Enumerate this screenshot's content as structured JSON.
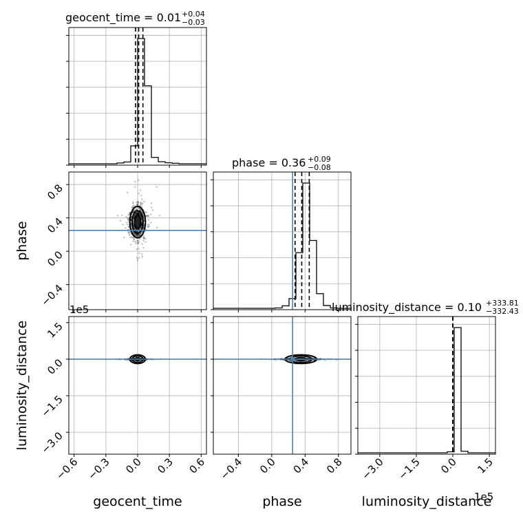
{
  "chart_data": {
    "type": "corner",
    "parameters": [
      "geocent_time",
      "phase",
      "luminosity_distance"
    ],
    "titles": [
      {
        "param": "geocent_time",
        "text": "geocent_time = 0.01",
        "plus": "+0.04",
        "minus": "−0.03"
      },
      {
        "param": "phase",
        "text": "phase = 0.36",
        "plus": "+0.09",
        "minus": "−0.08"
      },
      {
        "param": "luminosity_distance",
        "text": "luminosity_distance = 0.10",
        "plus": "+333.81",
        "minus": "−332.43"
      }
    ],
    "axis_ranges": {
      "geocent_time": [
        -0.65,
        0.65
      ],
      "phase": [
        -0.7,
        0.95
      ],
      "luminosity_distance": [
        -390000,
        175000
      ]
    },
    "ticks": {
      "geocent_time": [
        -0.6,
        -0.3,
        0.0,
        0.3,
        0.6
      ],
      "phase": [
        -0.4,
        0.0,
        0.4,
        0.8
      ],
      "luminosity_distance": [
        -300000,
        -150000,
        0,
        150000
      ]
    },
    "tick_labels": {
      "geocent_time": [
        "−0.6",
        "−0.3",
        "0.0",
        "0.3",
        "0.6"
      ],
      "phase": [
        "−0.4",
        "0.0",
        "0.4",
        "0.8"
      ],
      "luminosity_distance": [
        "−3.0",
        "−1.5",
        "0.0",
        "1.5"
      ]
    },
    "offset_label": "1e5",
    "truths": {
      "phase": 0.25,
      "luminosity_distance": 0
    },
    "quantiles": {
      "geocent_time": [
        -0.02,
        0.01,
        0.05
      ],
      "phase": [
        0.28,
        0.36,
        0.45
      ],
      "luminosity_distance": [
        -333,
        0.1,
        334
      ]
    },
    "histograms": {
      "geocent_time": {
        "edges": [
          -0.65,
          -0.585,
          -0.52,
          -0.455,
          -0.39,
          -0.325,
          -0.26,
          -0.195,
          -0.13,
          -0.065,
          0.0,
          0.065,
          0.13,
          0.195,
          0.26,
          0.325,
          0.39,
          0.455,
          0.52,
          0.585,
          0.65
        ],
        "counts": [
          0,
          0,
          0,
          0,
          0,
          0,
          0,
          3,
          7,
          70,
          490,
          305,
          25,
          8,
          4,
          2,
          0,
          0,
          0,
          0
        ]
      },
      "phase": {
        "edges": [
          -0.7,
          -0.6175,
          -0.535,
          -0.4525,
          -0.37,
          -0.2875,
          -0.205,
          -0.1225,
          -0.04,
          0.0425,
          0.125,
          0.2075,
          0.29,
          0.3725,
          0.455,
          0.5375,
          0.62,
          0.7025,
          0.785,
          0.8675,
          0.95
        ],
        "counts": [
          0,
          0,
          0,
          0,
          0,
          0,
          0,
          0,
          0,
          1,
          7,
          28,
          160,
          360,
          195,
          42,
          8,
          1,
          0,
          0
        ]
      },
      "luminosity_distance": {
        "edges": [
          -390000,
          -361750,
          -333500,
          -305250,
          -277000,
          -248750,
          -220500,
          -192250,
          -164000,
          -135750,
          -107500,
          -79250,
          -51000,
          -22750,
          5500,
          33750,
          62000,
          90250,
          118500,
          146750,
          175000
        ],
        "counts": [
          0,
          0,
          0,
          0,
          0,
          0,
          0,
          0,
          0,
          0,
          0,
          0,
          0,
          8,
          980,
          12,
          0,
          0,
          0,
          0
        ]
      }
    },
    "grid": true
  }
}
